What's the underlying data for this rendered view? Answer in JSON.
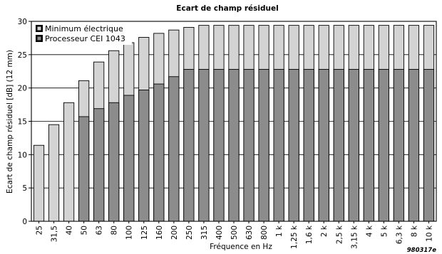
{
  "chart_data": {
    "type": "bar",
    "title": "Ecart de champ résiduel",
    "xlabel": "Fréquence en Hz",
    "ylabel": "Ecart de champ résiduel [dB] (12 mm)",
    "ylim": [
      0,
      30
    ],
    "yticks": [
      0,
      5,
      10,
      15,
      20,
      25,
      30
    ],
    "grid": "horizontal",
    "legend_position": "top-left",
    "categories": [
      "25",
      "31,5",
      "40",
      "50",
      "63",
      "80",
      "100",
      "125",
      "160",
      "200",
      "250",
      "315",
      "400",
      "500",
      "630",
      "800",
      "1 k",
      "1,25 k",
      "1,6 k",
      "2 k",
      "2,5 k",
      "3,15 k",
      "4 k",
      "5 k",
      "6,3 k",
      "8 k",
      "10 k"
    ],
    "series": [
      {
        "name": "Minimum électrique",
        "color": "#d3d3d3",
        "values": [
          11.4,
          14.5,
          17.8,
          21.1,
          23.9,
          25.6,
          26.8,
          27.6,
          28.2,
          28.7,
          29.1,
          29.4,
          29.4,
          29.4,
          29.4,
          29.4,
          29.4,
          29.4,
          29.4,
          29.4,
          29.4,
          29.4,
          29.4,
          29.4,
          29.4,
          29.4,
          29.4
        ]
      },
      {
        "name": "Processeur CEI 1043",
        "color": "#8c8c8c",
        "values": [
          null,
          null,
          null,
          15.7,
          16.9,
          17.8,
          18.9,
          19.7,
          20.6,
          21.7,
          22.8,
          22.8,
          22.8,
          22.8,
          22.8,
          22.8,
          22.8,
          22.8,
          22.8,
          22.8,
          22.8,
          22.8,
          22.8,
          22.8,
          22.8,
          22.8,
          22.8
        ]
      }
    ]
  },
  "figure_code": "980317e"
}
